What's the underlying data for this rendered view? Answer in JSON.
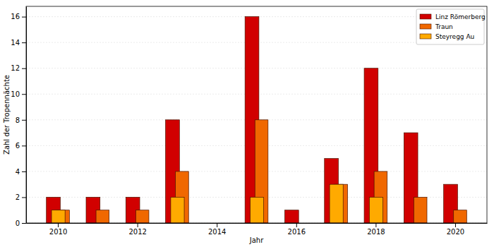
{
  "chart_data": {
    "type": "bar",
    "x_label": "Jahr",
    "y_label": "Zahl der Tropennächte",
    "x": [
      2010,
      2011,
      2012,
      2013,
      2014,
      2015,
      2016,
      2017,
      2018,
      2019,
      2020
    ],
    "series": [
      {
        "name": "Linz Römerberg",
        "color": "#d10000",
        "values": [
          2,
          2,
          2,
          8,
          0,
          16,
          1,
          5,
          12,
          7,
          3
        ]
      },
      {
        "name": "Traun",
        "color": "#f06800",
        "values": [
          1,
          1,
          1,
          4,
          0,
          8,
          0,
          3,
          4,
          2,
          1
        ]
      },
      {
        "name": "Steyregg Au",
        "color": "#ffaa00",
        "values": [
          1,
          0,
          0,
          2,
          0,
          2,
          0,
          3,
          2,
          0,
          0
        ]
      }
    ],
    "xlim": [
      2009.2,
      2020.8
    ],
    "xticks": [
      2010,
      2012,
      2014,
      2016,
      2018,
      2020
    ],
    "ylim": [
      0,
      16.8
    ],
    "yticks": [
      0,
      2,
      4,
      6,
      8,
      10,
      12,
      14,
      16
    ],
    "grid": true,
    "legend": "upper right"
  }
}
